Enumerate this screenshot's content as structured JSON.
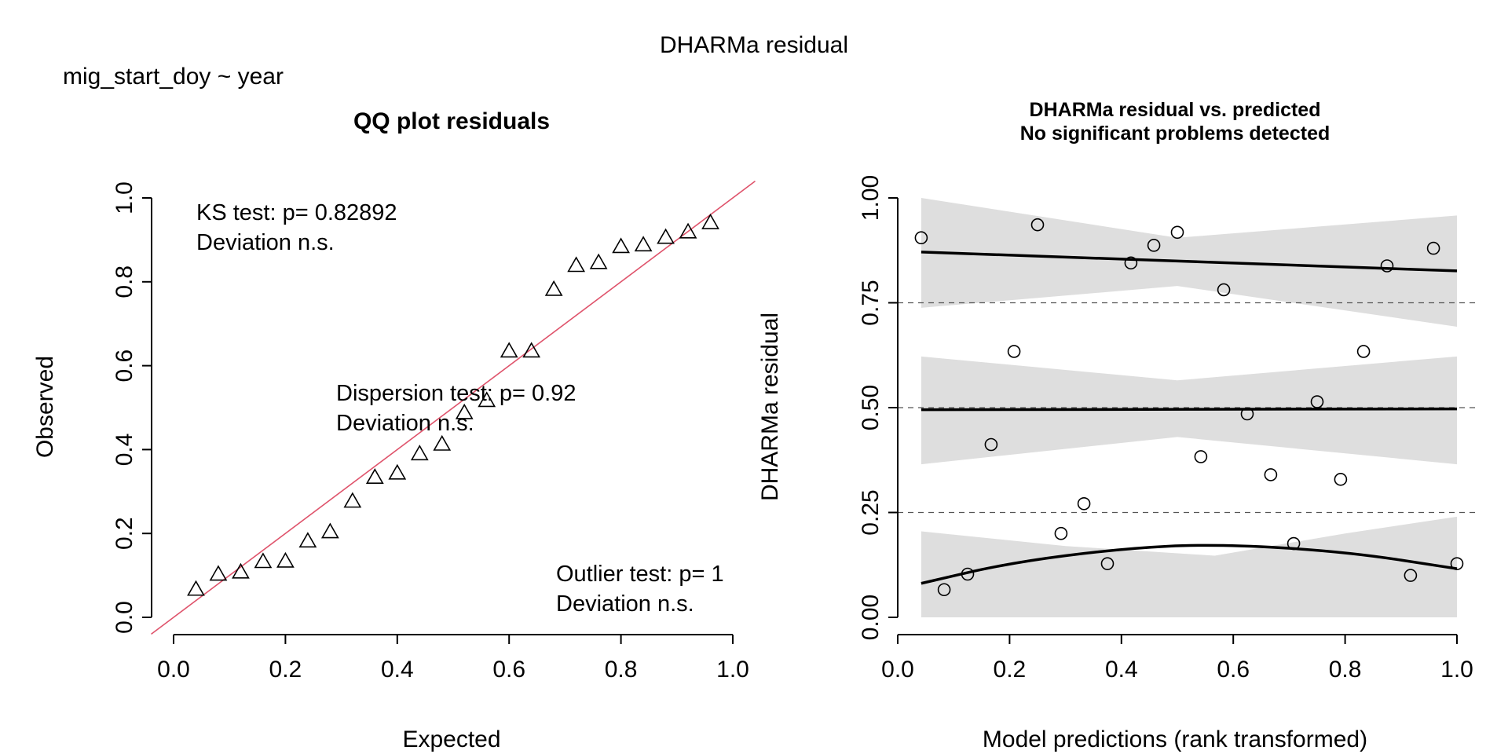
{
  "figure": {
    "main_title": "DHARMa residual",
    "formula": "mig_start_doy ~ year"
  },
  "chart_data": [
    {
      "type": "scatter",
      "title": "QQ plot residuals",
      "xlabel": "Expected",
      "ylabel": "Observed",
      "xlim": [
        0,
        1
      ],
      "ylim": [
        0,
        1
      ],
      "x_ticks": [
        0.0,
        0.2,
        0.4,
        0.6,
        0.8,
        1.0
      ],
      "y_ticks": [
        0.0,
        0.2,
        0.4,
        0.6,
        0.8,
        1.0
      ],
      "x_tick_labels": [
        "0.0",
        "0.2",
        "0.4",
        "0.6",
        "0.8",
        "1.0"
      ],
      "y_tick_labels": [
        "0.0",
        "0.2",
        "0.4",
        "0.6",
        "0.8",
        "1.0"
      ],
      "grid": false,
      "marker": "triangle",
      "reference_line": {
        "slope": 1,
        "intercept": 0,
        "color": "#DF536B"
      },
      "points": [
        {
          "x": 0.04,
          "y": 0.066
        },
        {
          "x": 0.08,
          "y": 0.102
        },
        {
          "x": 0.12,
          "y": 0.107
        },
        {
          "x": 0.16,
          "y": 0.132
        },
        {
          "x": 0.2,
          "y": 0.133
        },
        {
          "x": 0.24,
          "y": 0.181
        },
        {
          "x": 0.28,
          "y": 0.203
        },
        {
          "x": 0.32,
          "y": 0.276
        },
        {
          "x": 0.36,
          "y": 0.333
        },
        {
          "x": 0.4,
          "y": 0.343
        },
        {
          "x": 0.44,
          "y": 0.389
        },
        {
          "x": 0.48,
          "y": 0.412
        },
        {
          "x": 0.52,
          "y": 0.487
        },
        {
          "x": 0.56,
          "y": 0.516
        },
        {
          "x": 0.6,
          "y": 0.634
        },
        {
          "x": 0.64,
          "y": 0.634
        },
        {
          "x": 0.68,
          "y": 0.781
        },
        {
          "x": 0.72,
          "y": 0.838
        },
        {
          "x": 0.76,
          "y": 0.845
        },
        {
          "x": 0.8,
          "y": 0.883
        },
        {
          "x": 0.84,
          "y": 0.887
        },
        {
          "x": 0.88,
          "y": 0.905
        },
        {
          "x": 0.92,
          "y": 0.918
        },
        {
          "x": 0.96,
          "y": 0.94
        }
      ],
      "annotations": {
        "ks": [
          "KS test: p= 0.82892",
          "Deviation  n.s."
        ],
        "dispersion": [
          "Dispersion test: p= 0.92",
          "Deviation  n.s."
        ],
        "outlier": [
          "Outlier test: p= 1",
          "Deviation  n.s."
        ]
      }
    },
    {
      "type": "scatter",
      "title": "DHARMa residual vs. predicted",
      "subtitle": "No significant problems detected",
      "xlabel": "Model predictions (rank transformed)",
      "ylabel": "DHARMa residual",
      "xlim": [
        0,
        1
      ],
      "ylim": [
        0,
        1
      ],
      "x_ticks": [
        0.0,
        0.2,
        0.4,
        0.6,
        0.8,
        1.0
      ],
      "y_ticks": [
        0.0,
        0.25,
        0.5,
        0.75,
        1.0
      ],
      "x_tick_labels": [
        "0.0",
        "0.2",
        "0.4",
        "0.6",
        "0.8",
        "1.0"
      ],
      "y_tick_labels": [
        "0.00",
        "0.25",
        "0.50",
        "0.75",
        "1.00"
      ],
      "grid": false,
      "marker": "open-circle",
      "reference_lines": [
        0.25,
        0.5,
        0.75
      ],
      "points": [
        {
          "x": 0.042,
          "y": 0.905
        },
        {
          "x": 0.083,
          "y": 0.066
        },
        {
          "x": 0.125,
          "y": 0.103
        },
        {
          "x": 0.167,
          "y": 0.412
        },
        {
          "x": 0.208,
          "y": 0.634
        },
        {
          "x": 0.25,
          "y": 0.936
        },
        {
          "x": 0.292,
          "y": 0.2
        },
        {
          "x": 0.333,
          "y": 0.271
        },
        {
          "x": 0.375,
          "y": 0.128
        },
        {
          "x": 0.417,
          "y": 0.845
        },
        {
          "x": 0.458,
          "y": 0.887
        },
        {
          "x": 0.5,
          "y": 0.918
        },
        {
          "x": 0.542,
          "y": 0.383
        },
        {
          "x": 0.583,
          "y": 0.781
        },
        {
          "x": 0.625,
          "y": 0.485
        },
        {
          "x": 0.667,
          "y": 0.34
        },
        {
          "x": 0.708,
          "y": 0.176
        },
        {
          "x": 0.75,
          "y": 0.514
        },
        {
          "x": 0.792,
          "y": 0.329
        },
        {
          "x": 0.833,
          "y": 0.634
        },
        {
          "x": 0.875,
          "y": 0.838
        },
        {
          "x": 0.917,
          "y": 0.1
        },
        {
          "x": 0.958,
          "y": 0.88
        },
        {
          "x": 1.0,
          "y": 0.128
        }
      ],
      "quantile_fits": [
        {
          "quantile": 0.25,
          "line": [
            [
              0.042,
              0.081
            ],
            [
              0.2,
              0.13
            ],
            [
              0.4,
              0.164
            ],
            [
              0.567,
              0.175
            ],
            [
              0.8,
              0.157
            ],
            [
              1.0,
              0.116
            ]
          ],
          "band_upper": [
            [
              0.042,
              0.205
            ],
            [
              0.3,
              0.17
            ],
            [
              0.567,
              0.147
            ],
            [
              0.8,
              0.2
            ],
            [
              1.0,
              0.24
            ]
          ],
          "band_lower": [
            [
              0.042,
              0.0
            ],
            [
              0.4,
              0.0
            ],
            [
              0.567,
              0.0
            ],
            [
              0.8,
              0.0
            ],
            [
              1.0,
              0.0
            ]
          ]
        },
        {
          "quantile": 0.5,
          "line": [
            [
              0.042,
              0.495
            ],
            [
              1.0,
              0.497
            ]
          ],
          "band_upper": [
            [
              0.042,
              0.622
            ],
            [
              0.5,
              0.565
            ],
            [
              1.0,
              0.622
            ]
          ],
          "band_lower": [
            [
              0.042,
              0.365
            ],
            [
              0.5,
              0.43
            ],
            [
              1.0,
              0.365
            ]
          ]
        },
        {
          "quantile": 0.75,
          "line": [
            [
              0.042,
              0.871
            ],
            [
              1.0,
              0.826
            ]
          ],
          "band_upper": [
            [
              0.042,
              1.0
            ],
            [
              0.5,
              0.905
            ],
            [
              1.0,
              0.958
            ]
          ],
          "band_lower": [
            [
              0.042,
              0.738
            ],
            [
              0.5,
              0.79
            ],
            [
              1.0,
              0.693
            ]
          ]
        }
      ]
    }
  ]
}
